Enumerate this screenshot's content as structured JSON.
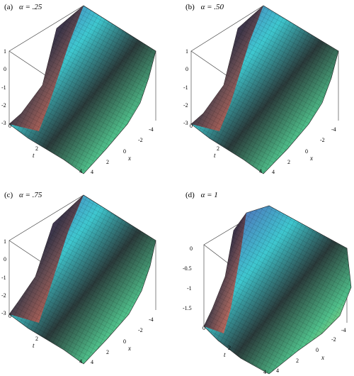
{
  "panels": [
    {
      "letter": "(a)",
      "alpha": "α = .25",
      "z_ticks": [
        "1",
        "0",
        "-1",
        "-2",
        "-3"
      ],
      "t_ticks": [
        "0",
        "2",
        "4"
      ],
      "t_label": "t",
      "x_ticks": [
        "-4",
        "-2",
        "0",
        "2",
        "4"
      ],
      "x_label": "x"
    },
    {
      "letter": "(b)",
      "alpha": "α = .50",
      "z_ticks": [
        "1",
        "0",
        "-1",
        "-2",
        "-3"
      ],
      "t_ticks": [
        "0",
        "2",
        "4"
      ],
      "t_label": "t",
      "x_ticks": [
        "-4",
        "-2",
        "0",
        "2",
        "4"
      ],
      "x_label": "x"
    },
    {
      "letter": "(c)",
      "alpha": "α = .75",
      "z_ticks": [
        "1",
        "0",
        "-1",
        "-2",
        "-3"
      ],
      "t_ticks": [
        "0",
        "2",
        "4"
      ],
      "t_label": "t",
      "x_ticks": [
        "-4",
        "-2",
        "0",
        "2",
        "4"
      ],
      "x_label": "x"
    },
    {
      "letter": "(d)",
      "alpha": "α = 1",
      "z_ticks": [
        "0",
        "-0.5",
        "-1",
        "-1.5"
      ],
      "t_ticks": [
        "0",
        "2",
        "4"
      ],
      "t_label": "t",
      "x_ticks": [
        "-4",
        "-2",
        "0",
        "2",
        "4"
      ],
      "x_label": "x"
    }
  ]
}
